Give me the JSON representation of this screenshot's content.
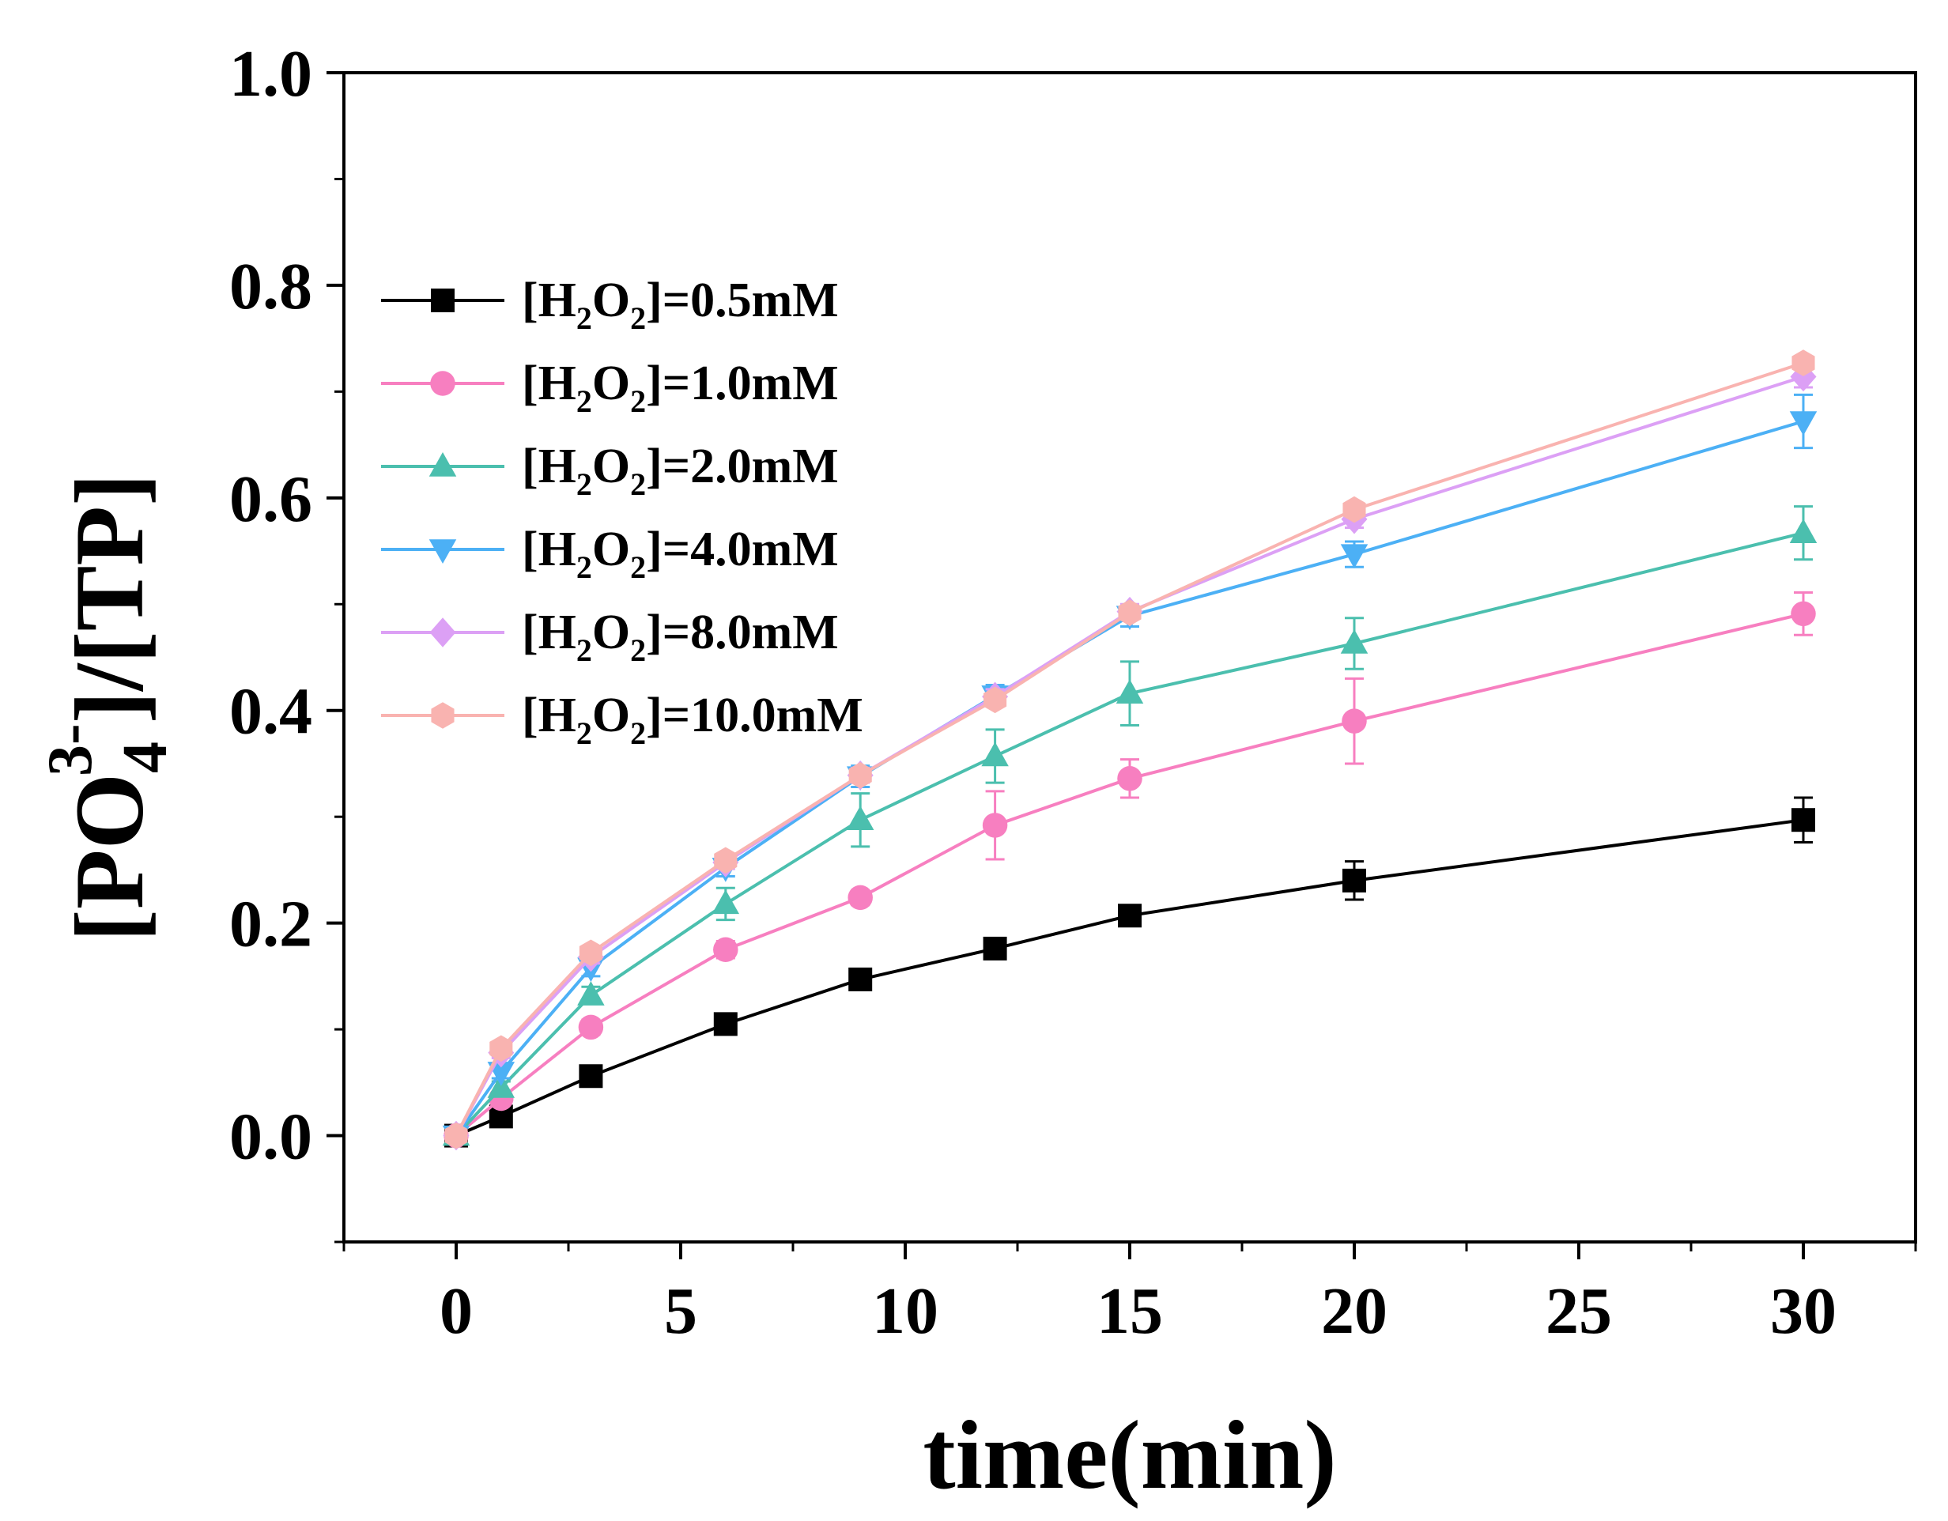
{
  "chart_data": {
    "type": "line",
    "title": "",
    "xlabel": "time(min)",
    "ylabel_parts": {
      "open": "[PO",
      "sub": "4",
      "sup": "3-",
      "close": "]/[TP]"
    },
    "xlim": [
      -2.5,
      32.5
    ],
    "ylim": [
      -0.1,
      1.0
    ],
    "xticks": [
      0,
      5,
      10,
      15,
      20,
      25,
      30
    ],
    "yticks": [
      0.0,
      0.2,
      0.4,
      0.6,
      0.8,
      1.0
    ],
    "xtick_labels": [
      "0",
      "5",
      "10",
      "15",
      "20",
      "25",
      "30"
    ],
    "ytick_labels": [
      "0.0",
      "0.2",
      "0.4",
      "0.6",
      "0.8",
      "1.0"
    ],
    "x": [
      0,
      1,
      3,
      6,
      9,
      12,
      15,
      20,
      30
    ],
    "legend_position": "upper-left",
    "series": [
      {
        "name": "[H2O2]=0.5mM",
        "label_parts": {
          "pre": "[H",
          "s1": "2",
          "mid": "O",
          "s2": "2",
          "post": "]=0.5mM"
        },
        "marker": "square",
        "color": "#000000",
        "values": [
          0.0,
          0.018,
          0.056,
          0.105,
          0.147,
          0.176,
          0.207,
          0.24,
          0.297
        ],
        "errors": [
          0.003,
          0.005,
          0.006,
          0.006,
          0.006,
          0.007,
          0.007,
          0.018,
          0.021
        ]
      },
      {
        "name": "[H2O2]=1.0mM",
        "label_parts": {
          "pre": "[H",
          "s1": "2",
          "mid": "O",
          "s2": "2",
          "post": "]=1.0mM"
        },
        "marker": "circle",
        "color": "#f77fc0",
        "values": [
          0.0,
          0.035,
          0.102,
          0.175,
          0.224,
          0.292,
          0.336,
          0.39,
          0.491
        ],
        "errors": [
          0.003,
          0.006,
          0.007,
          0.008,
          0.007,
          0.032,
          0.018,
          0.04,
          0.02
        ]
      },
      {
        "name": "[H2O2]=2.0mM",
        "label_parts": {
          "pre": "[H",
          "s1": "2",
          "mid": "O",
          "s2": "2",
          "post": "]=2.0mM"
        },
        "marker": "triangle-up",
        "color": "#4bbfae",
        "values": [
          0.0,
          0.045,
          0.132,
          0.218,
          0.297,
          0.357,
          0.416,
          0.463,
          0.567
        ],
        "errors": [
          0.003,
          0.006,
          0.008,
          0.015,
          0.025,
          0.025,
          0.03,
          0.024,
          0.025
        ]
      },
      {
        "name": "[H2O2]=4.0mM",
        "label_parts": {
          "pre": "[H",
          "s1": "2",
          "mid": "O",
          "s2": "2",
          "post": "]=4.0mM"
        },
        "marker": "triangle-down",
        "color": "#4cb0f5",
        "values": [
          0.0,
          0.06,
          0.158,
          0.252,
          0.338,
          0.414,
          0.489,
          0.547,
          0.672
        ],
        "errors": [
          0.003,
          0.006,
          0.008,
          0.008,
          0.01,
          0.01,
          0.01,
          0.012,
          0.025
        ]
      },
      {
        "name": "[H2O2]=8.0mM",
        "label_parts": {
          "pre": "[H",
          "s1": "2",
          "mid": "O",
          "s2": "2",
          "post": "]=8.0mM"
        },
        "marker": "diamond",
        "color": "#dca0f5",
        "values": [
          0.0,
          0.078,
          0.168,
          0.257,
          0.339,
          0.413,
          0.493,
          0.58,
          0.714
        ],
        "errors": [
          0.003,
          0.005,
          0.006,
          0.006,
          0.007,
          0.007,
          0.007,
          0.008,
          0.01
        ]
      },
      {
        "name": "[H2O2]=10.0mM",
        "label_parts": {
          "pre": "[H",
          "s1": "2",
          "mid": "O",
          "s2": "2",
          "post": "]=10.0mM"
        },
        "marker": "hexagon",
        "color": "#f9b3b0",
        "values": [
          0.0,
          0.082,
          0.172,
          0.259,
          0.339,
          0.41,
          0.492,
          0.589,
          0.727
        ],
        "errors": [
          0.003,
          0.005,
          0.006,
          0.006,
          0.006,
          0.006,
          0.006,
          0.006,
          0.006
        ]
      }
    ]
  }
}
